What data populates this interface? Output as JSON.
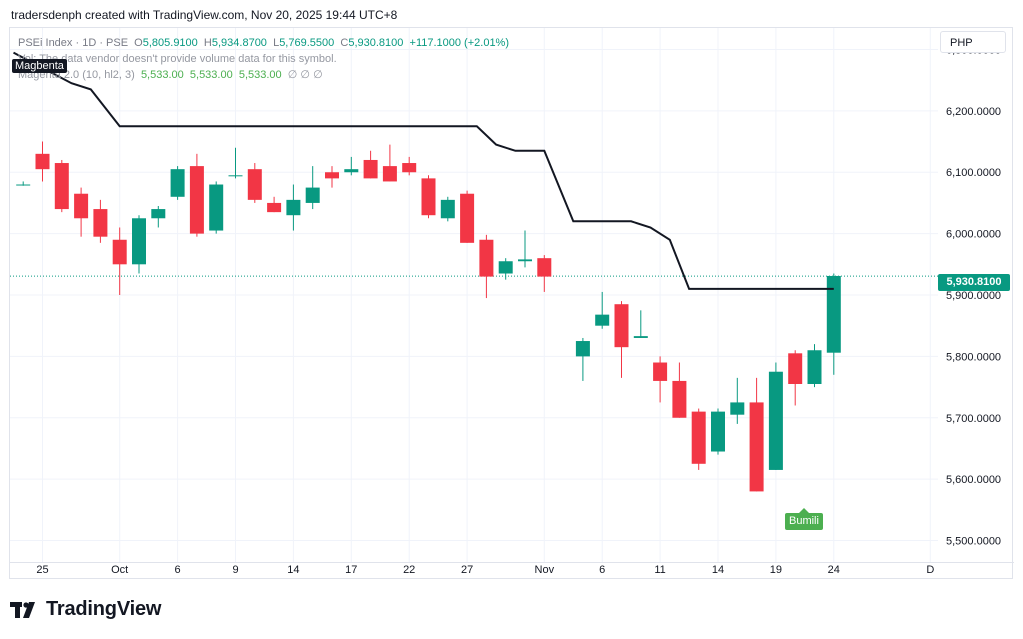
{
  "header": {
    "text": "tradersdenph created with TradingView.com, Nov 20, 2025 19:44 UTC+8"
  },
  "legend": {
    "symbol": "PSEi Index · 1D · PSE",
    "o_label": "O",
    "o_value": "5,805.9100",
    "h_label": "H",
    "h_value": "5,934.8700",
    "l_label": "L",
    "l_value": "5,769.5500",
    "c_label": "C",
    "c_value": "5,930.8100",
    "change": "+117.1000 (+2.01%)",
    "vol_note": "Vol: The data vendor doesn't provide volume data for this symbol.",
    "ind_name": "Magenta 2.0",
    "ind_params": "(10, hl2, 3)",
    "ind_v1": "5,533.00",
    "ind_v2": "5,533.00",
    "ind_v3": "5,533.00",
    "ind_empty": "∅  ∅  ∅"
  },
  "currency": "PHP",
  "magenta_tag": "Magbenta",
  "price_tag": "5,930.8100",
  "signal_label": "Bumili",
  "logo": {
    "word": "TradingView",
    "icon": "tradingview-logo-icon"
  },
  "colors": {
    "up": "#089981",
    "down": "#f23645",
    "line": "#131722",
    "grid": "#f0f3fa"
  },
  "chart_data": {
    "type": "candlestick",
    "y_range": [
      5465,
      6335
    ],
    "y_ticks": [
      6300,
      6200,
      6100,
      6000,
      5900,
      5800,
      5700,
      5600,
      5500
    ],
    "y_tick_labels": [
      "6,300.0000",
      "6,200.0000",
      "6,100.0000",
      "6,000.0000",
      "5,900.0000",
      "5,800.0000",
      "5,700.0000",
      "5,600.0000",
      "5,500.0000"
    ],
    "x_labels": [
      {
        "i": 0,
        "label": "25"
      },
      {
        "i": 4,
        "label": "Oct"
      },
      {
        "i": 7,
        "label": "6"
      },
      {
        "i": 10,
        "label": "9"
      },
      {
        "i": 13,
        "label": "14"
      },
      {
        "i": 16,
        "label": "17"
      },
      {
        "i": 19,
        "label": "22"
      },
      {
        "i": 22,
        "label": "27"
      },
      {
        "i": 26,
        "label": "Nov"
      },
      {
        "i": 29,
        "label": "6"
      },
      {
        "i": 32,
        "label": "11"
      },
      {
        "i": 35,
        "label": "14"
      },
      {
        "i": 38,
        "label": "19"
      },
      {
        "i": 41,
        "label": "24"
      },
      {
        "i": 46,
        "label": "D"
      }
    ],
    "candles": [
      {
        "i": -1,
        "o": 6080,
        "h": 6085,
        "l": 6078,
        "c": 6080
      },
      {
        "i": 0,
        "o": 6130,
        "h": 6150,
        "l": 6085,
        "c": 6105
      },
      {
        "i": 1,
        "o": 6115,
        "h": 6120,
        "l": 6035,
        "c": 6040
      },
      {
        "i": 2,
        "o": 6065,
        "h": 6075,
        "l": 5995,
        "c": 6025
      },
      {
        "i": 3,
        "o": 6040,
        "h": 6055,
        "l": 5985,
        "c": 5995
      },
      {
        "i": 4,
        "o": 5990,
        "h": 6010,
        "l": 5900,
        "c": 5950
      },
      {
        "i": 5,
        "o": 5950,
        "h": 6030,
        "l": 5935,
        "c": 6025
      },
      {
        "i": 6,
        "o": 6025,
        "h": 6045,
        "l": 6010,
        "c": 6040
      },
      {
        "i": 7,
        "o": 6060,
        "h": 6110,
        "l": 6055,
        "c": 6105
      },
      {
        "i": 8,
        "o": 6110,
        "h": 6130,
        "l": 5995,
        "c": 6000
      },
      {
        "i": 9,
        "o": 6005,
        "h": 6085,
        "l": 6000,
        "c": 6080
      },
      {
        "i": 10,
        "o": 6095,
        "h": 6140,
        "l": 6090,
        "c": 6095
      },
      {
        "i": 11,
        "o": 6105,
        "h": 6115,
        "l": 6050,
        "c": 6055
      },
      {
        "i": 12,
        "o": 6050,
        "h": 6060,
        "l": 6035,
        "c": 6035
      },
      {
        "i": 13,
        "o": 6030,
        "h": 6080,
        "l": 6005,
        "c": 6055
      },
      {
        "i": 14,
        "o": 6050,
        "h": 6110,
        "l": 6040,
        "c": 6075
      },
      {
        "i": 15,
        "o": 6100,
        "h": 6110,
        "l": 6075,
        "c": 6090
      },
      {
        "i": 16,
        "o": 6100,
        "h": 6125,
        "l": 6095,
        "c": 6105
      },
      {
        "i": 17,
        "o": 6120,
        "h": 6135,
        "l": 6090,
        "c": 6090
      },
      {
        "i": 18,
        "o": 6110,
        "h": 6145,
        "l": 6085,
        "c": 6085
      },
      {
        "i": 19,
        "o": 6115,
        "h": 6125,
        "l": 6095,
        "c": 6100
      },
      {
        "i": 20,
        "o": 6090,
        "h": 6095,
        "l": 6025,
        "c": 6030
      },
      {
        "i": 21,
        "o": 6025,
        "h": 6060,
        "l": 6020,
        "c": 6055
      },
      {
        "i": 22,
        "o": 6065,
        "h": 6070,
        "l": 5985,
        "c": 5985
      },
      {
        "i": 23,
        "o": 5990,
        "h": 5998,
        "l": 5895,
        "c": 5930
      },
      {
        "i": 24,
        "o": 5935,
        "h": 5960,
        "l": 5925,
        "c": 5955
      },
      {
        "i": 25,
        "o": 5955,
        "h": 6005,
        "l": 5945,
        "c": 5958
      },
      {
        "i": 26,
        "o": 5960,
        "h": 5965,
        "l": 5905,
        "c": 5930
      },
      {
        "i": 28,
        "o": 5800,
        "h": 5830,
        "l": 5760,
        "c": 5825
      },
      {
        "i": 29,
        "o": 5850,
        "h": 5905,
        "l": 5845,
        "c": 5868
      },
      {
        "i": 30,
        "o": 5885,
        "h": 5890,
        "l": 5765,
        "c": 5815
      },
      {
        "i": 31,
        "o": 5830,
        "h": 5875,
        "l": 5830,
        "c": 5833
      },
      {
        "i": 32,
        "o": 5790,
        "h": 5800,
        "l": 5725,
        "c": 5760
      },
      {
        "i": 33,
        "o": 5760,
        "h": 5790,
        "l": 5700,
        "c": 5700
      },
      {
        "i": 34,
        "o": 5710,
        "h": 5715,
        "l": 5615,
        "c": 5625
      },
      {
        "i": 35,
        "o": 5645,
        "h": 5715,
        "l": 5640,
        "c": 5710
      },
      {
        "i": 36,
        "o": 5705,
        "h": 5765,
        "l": 5690,
        "c": 5725
      },
      {
        "i": 37,
        "o": 5725,
        "h": 5765,
        "l": 5580,
        "c": 5580
      },
      {
        "i": 38,
        "o": 5615,
        "h": 5790,
        "l": 5615,
        "c": 5775
      },
      {
        "i": 39,
        "o": 5805,
        "h": 5810,
        "l": 5720,
        "c": 5755
      },
      {
        "i": 40,
        "o": 5755,
        "h": 5820,
        "l": 5750,
        "c": 5810
      },
      {
        "i": 41,
        "o": 5806,
        "h": 5935,
        "l": 5770,
        "c": 5931
      }
    ],
    "magenta_line": [
      {
        "i": -1.5,
        "v": 6295
      },
      {
        "i": 1.5,
        "v": 6245
      },
      {
        "i": 2.5,
        "v": 6235
      },
      {
        "i": 4,
        "v": 6175
      },
      {
        "i": 22.5,
        "v": 6175
      },
      {
        "i": 23.5,
        "v": 6145
      },
      {
        "i": 24.5,
        "v": 6135
      },
      {
        "i": 26,
        "v": 6135
      },
      {
        "i": 27.5,
        "v": 6020
      },
      {
        "i": 30.5,
        "v": 6020
      },
      {
        "i": 31.5,
        "v": 6010
      },
      {
        "i": 32.5,
        "v": 5990
      },
      {
        "i": 33.5,
        "v": 5910
      },
      {
        "i": 41,
        "v": 5910
      }
    ],
    "last_price": 5930.81
  }
}
